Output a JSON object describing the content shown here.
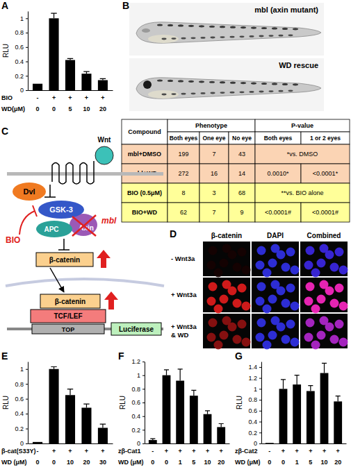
{
  "chart_data": [
    {
      "type": "bar",
      "panel_label": "A",
      "y_label": "RLU",
      "categories": [
        null,
        null,
        null,
        null,
        null
      ],
      "values": [
        0.09,
        1.0,
        0.42,
        0.23,
        0.14
      ],
      "errors": [
        0,
        0.07,
        0.02,
        0.03,
        0.02
      ],
      "color": "#000000",
      "ylim": [
        0,
        1.1
      ],
      "yticks": [
        0,
        0.2,
        0.4,
        0.6,
        0.8,
        1
      ],
      "condition_rows": [
        {
          "label": "BIO",
          "values": [
            "-",
            "+",
            "+",
            "+",
            "+"
          ]
        },
        {
          "label": "WD(μM)",
          "values": [
            0,
            0,
            5,
            10,
            20
          ]
        }
      ]
    },
    {
      "type": "bar",
      "panel_label": "E",
      "y_label": "RLU",
      "categories": [
        null,
        null,
        null,
        null,
        null
      ],
      "values": [
        0.02,
        1.0,
        0.65,
        0.48,
        0.21
      ],
      "errors": [
        0,
        0.03,
        0.08,
        0.05,
        0.05
      ],
      "color": "#000000",
      "ylim": [
        0,
        1.1
      ],
      "yticks": [
        0,
        0.2,
        0.4,
        0.6,
        0.8,
        1
      ],
      "condition_rows": [
        {
          "label": "β-cat(S33Y)",
          "values": [
            "-",
            "+",
            "+",
            "+",
            "+"
          ]
        },
        {
          "label": "WD (μM)",
          "values": [
            0,
            0,
            10,
            20,
            30
          ]
        }
      ]
    },
    {
      "type": "bar",
      "panel_label": "F",
      "y_label": "RLU",
      "categories": [
        null,
        null,
        null,
        null,
        null,
        null
      ],
      "values": [
        0.05,
        1.0,
        0.92,
        0.7,
        0.43,
        0.24
      ],
      "errors": [
        0.02,
        0.08,
        0.17,
        0.08,
        0.05,
        0.05
      ],
      "color": "#000000",
      "ylim": [
        0,
        1.2
      ],
      "yticks": [
        0,
        0.2,
        0.4,
        0.6,
        0.8,
        1,
        1.2
      ],
      "condition_rows": [
        {
          "label": "zβ-Cat1",
          "values": [
            "-",
            "+",
            "+",
            "+",
            "+",
            "+"
          ]
        },
        {
          "label": "WD (μM)",
          "values": [
            0,
            0,
            1,
            5,
            10,
            20
          ]
        }
      ]
    },
    {
      "type": "bar",
      "panel_label": "G",
      "y_label": "RLU",
      "categories": [
        null,
        null,
        null,
        null,
        null,
        null
      ],
      "values": [
        0.01,
        1.0,
        1.08,
        0.96,
        1.29,
        0.77
      ],
      "errors": [
        0,
        0.17,
        0.17,
        0.1,
        0.18,
        0.1
      ],
      "color": "#000000",
      "ylim": [
        0,
        1.5
      ],
      "yticks": [
        0,
        0.2,
        0.4,
        0.6,
        0.8,
        1,
        1.2,
        1.4
      ],
      "condition_rows": [
        {
          "label": "zβ-Cat2",
          "values": [
            "-",
            "+",
            "+",
            "+",
            "+",
            "+"
          ]
        },
        {
          "label": "WD (μM)",
          "values": [
            0,
            0,
            1,
            5,
            10,
            20
          ]
        }
      ]
    }
  ],
  "fish_panel": {
    "panel_label": "B",
    "images": [
      {
        "label": "mbl (axin mutant)"
      },
      {
        "label": "WD rescue"
      }
    ]
  },
  "table": {
    "header_top": [
      "Compound",
      "Phenotype",
      "P-value"
    ],
    "header_sub": [
      "Both eyes",
      "One eye",
      "No eye",
      "Both eyes",
      "1 or 2 eyes"
    ],
    "rows": [
      [
        "mbl+DMSO",
        199,
        7,
        43,
        "*vs. DMSO"
      ],
      [
        "mbl+WD",
        272,
        16,
        14,
        "0.0010*",
        "<0.0001*"
      ],
      [
        "BIO (0.5μM)",
        8,
        3,
        68,
        "**vs. BIO alone"
      ],
      [
        "BIO+WD",
        62,
        7,
        9,
        "<0.0001#",
        "<0.0001#"
      ]
    ]
  },
  "diagram": {
    "panel_label": "C",
    "labels": [
      "Wnt",
      "Dvl",
      "GSK-3",
      "APC",
      "Axin",
      "mbl",
      "BIO",
      "β-catenin",
      "β-catenin",
      "TCF/LEF",
      "TOP",
      "Luciferase"
    ]
  },
  "micrographs": {
    "panel_label": "D",
    "columns": [
      "β-catenin",
      "DAPI",
      "Combined"
    ],
    "rows": [
      [
        "- Wnt3a"
      ],
      [
        "+ Wnt3a"
      ],
      [
        "+ Wnt3a",
        "& WD"
      ]
    ]
  }
}
